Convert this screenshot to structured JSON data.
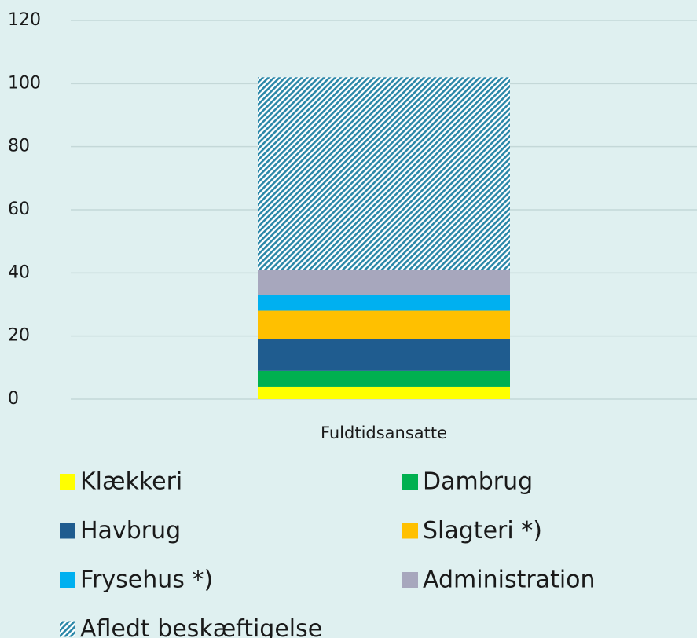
{
  "chart_data": {
    "type": "stacked_bar",
    "categories": [
      "Fuldtidsansatte"
    ],
    "series": [
      {
        "name": "Klækkeri",
        "color": "#ffff00",
        "values": [
          4
        ]
      },
      {
        "name": "Dambrug",
        "color": "#00b050",
        "values": [
          5
        ]
      },
      {
        "name": "Havbrug",
        "color": "#1f5c8f",
        "values": [
          10
        ]
      },
      {
        "name": "Slagteri *)",
        "color": "#ffc000",
        "values": [
          9
        ]
      },
      {
        "name": "Frysehus *)",
        "color": "#00b0f0",
        "values": [
          5
        ]
      },
      {
        "name": "Administration",
        "color": "#a7a7bd",
        "values": [
          8
        ]
      },
      {
        "name": "Afledt beskæftigelse",
        "color": "#2a87a8",
        "hatch": true,
        "values": [
          61
        ]
      }
    ],
    "ylim": [
      0,
      120
    ],
    "yticks": [
      0,
      20,
      40,
      60,
      80,
      100,
      120
    ],
    "grid": true,
    "legend": "bottom"
  }
}
